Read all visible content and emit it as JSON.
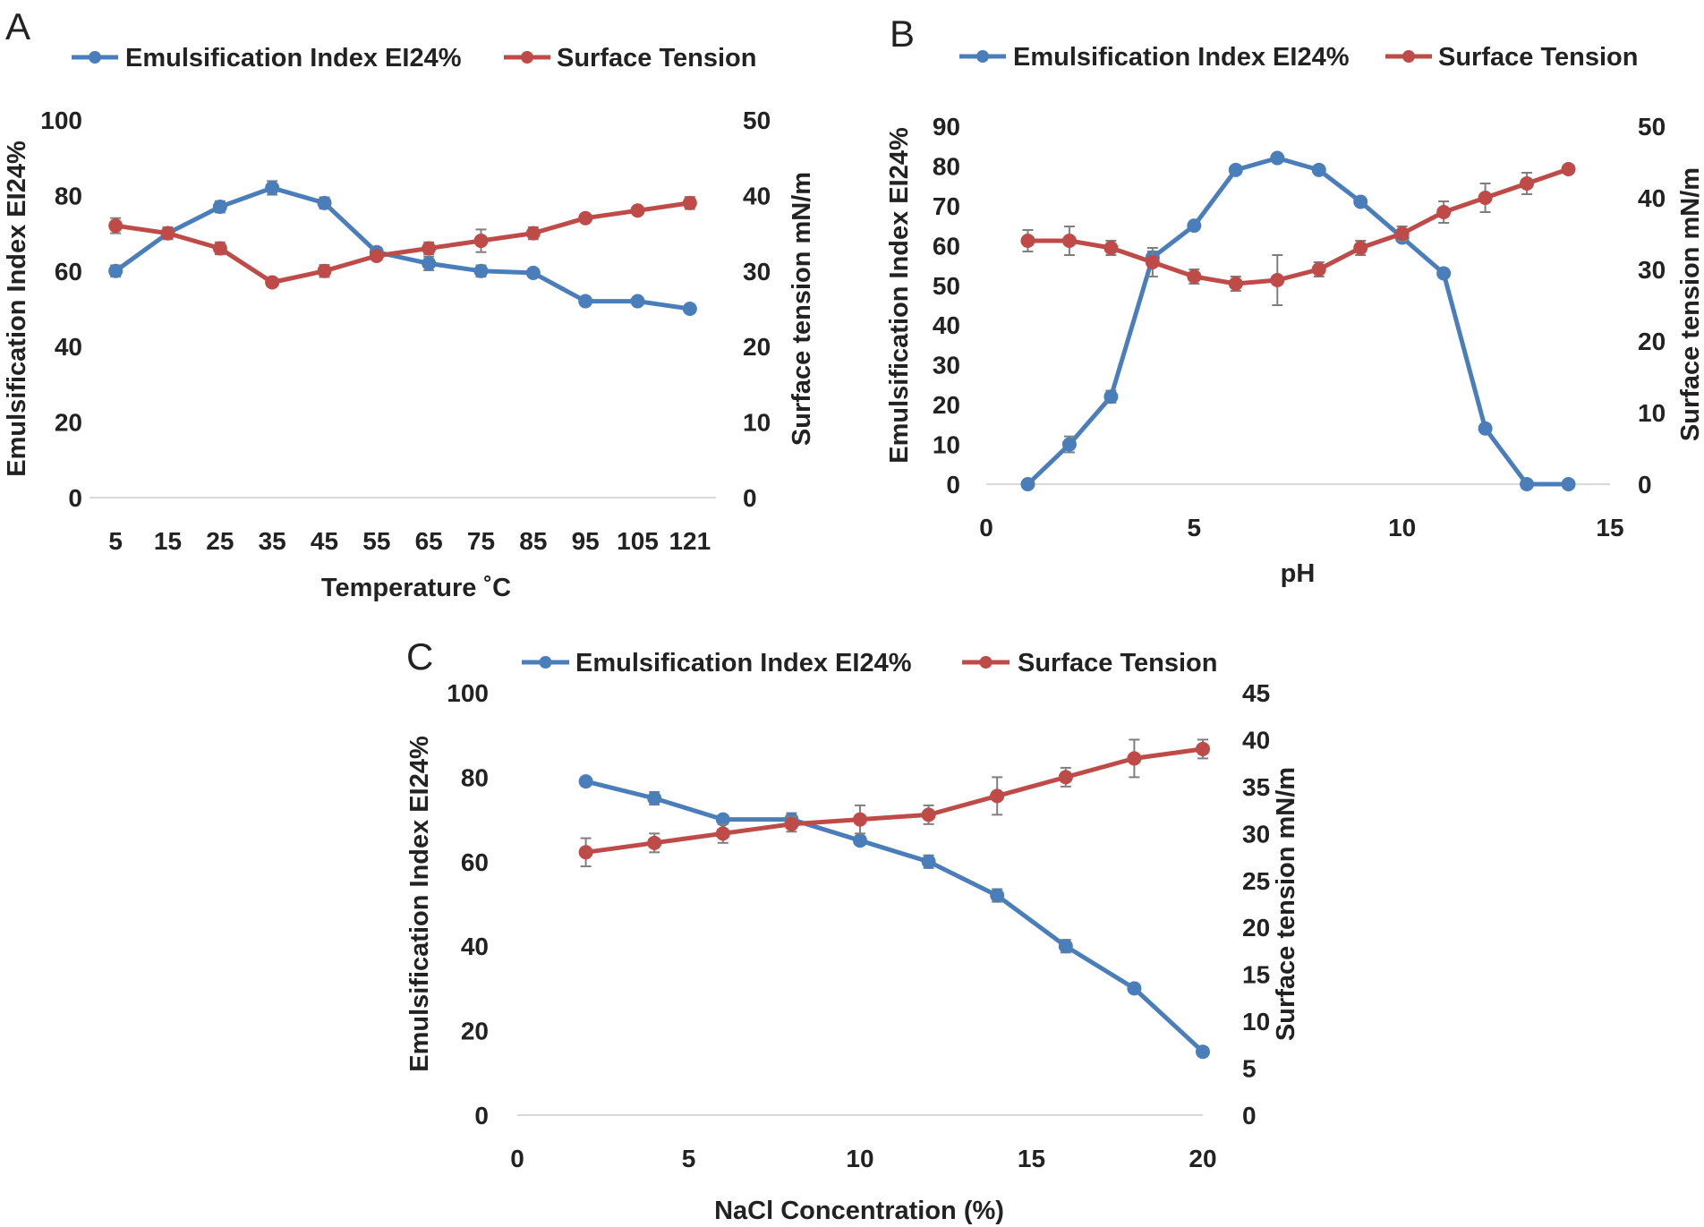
{
  "colors": {
    "ei": "#4a7ebb",
    "st": "#be4b48",
    "axis": "#d9d9d9",
    "err": "#7f7f7f",
    "text": "#222222"
  },
  "chart_data": [
    {
      "panel": "A",
      "type": "line",
      "x_mode": "category",
      "categories": [
        "5",
        "15",
        "25",
        "35",
        "45",
        "55",
        "65",
        "75",
        "85",
        "95",
        "105",
        "121"
      ],
      "xlabel": "Temperature ˚C",
      "ylabel_left": "Emulsification Index EI24%",
      "ylabel_right": "Surface tension mN/m",
      "yleft": {
        "min": 0,
        "max": 100,
        "step": 20
      },
      "yright": {
        "min": 0,
        "max": 50,
        "step": 10
      },
      "series": [
        {
          "name": "Emulsification Index EI24%",
          "axis": "left",
          "color": "#4a7ebb",
          "values": [
            60,
            70,
            77,
            82,
            78,
            65,
            62,
            60,
            59.5,
            52,
            52,
            50
          ],
          "errors": [
            1.5,
            1.5,
            1.5,
            1.8,
            1.5,
            1.2,
            1.8,
            1.5,
            1,
            1,
            1,
            1
          ]
        },
        {
          "name": "Surface Tension",
          "axis": "right",
          "color": "#be4b48",
          "values": [
            36,
            35,
            33,
            28.5,
            30,
            32,
            33,
            34,
            35,
            37,
            38,
            39
          ],
          "errors": [
            1,
            0.8,
            0.8,
            0.5,
            0.8,
            0.5,
            0.8,
            1.5,
            0.8,
            0.5,
            0.5,
            0.8
          ]
        }
      ]
    },
    {
      "panel": "B",
      "type": "line",
      "x_mode": "value",
      "xlabel": "pH",
      "ylabel_left": "Emulsification Index EI24%",
      "ylabel_right": "Surface tension mN/m",
      "xaxis": {
        "min": 0,
        "max": 15,
        "step": 5
      },
      "yleft": {
        "min": 0,
        "max": 90,
        "step": 10
      },
      "yright": {
        "min": 0,
        "max": 50,
        "step": 10
      },
      "series": [
        {
          "name": "Emulsification Index EI24%",
          "axis": "left",
          "color": "#4a7ebb",
          "x": [
            1,
            2,
            3,
            4,
            5,
            6,
            7,
            8,
            9,
            10,
            11,
            12,
            13,
            14
          ],
          "values": [
            0,
            10,
            22,
            57,
            65,
            79,
            82,
            79,
            71,
            62,
            53,
            14,
            0,
            0
          ],
          "errors": [
            0,
            2,
            1.5,
            1.5,
            1,
            1,
            1,
            1,
            1,
            1,
            1,
            1,
            0,
            0
          ]
        },
        {
          "name": "Surface Tension",
          "axis": "right",
          "color": "#be4b48",
          "x": [
            1,
            2,
            3,
            4,
            5,
            6,
            7,
            8,
            9,
            10,
            11,
            12,
            13,
            14
          ],
          "values": [
            34,
            34,
            33,
            31,
            29,
            28,
            28.5,
            30,
            33,
            35,
            38,
            40,
            42,
            44
          ],
          "errors": [
            1.5,
            2,
            1,
            2,
            1,
            1,
            3.5,
            1,
            1,
            1,
            1.5,
            2,
            1.5,
            0.5
          ]
        }
      ]
    },
    {
      "panel": "C",
      "type": "line",
      "x_mode": "value",
      "xlabel": "NaCl Concentration (%)",
      "ylabel_left": "Emulsification Index EI24%",
      "ylabel_right": "Surface tension mN/m",
      "xaxis": {
        "min": 0,
        "max": 20,
        "step": 5
      },
      "yleft": {
        "min": 0,
        "max": 100,
        "step": 20
      },
      "yright": {
        "min": 0,
        "max": 45,
        "step": 5
      },
      "series": [
        {
          "name": "Emulsification Index EI24%",
          "axis": "left",
          "color": "#4a7ebb",
          "x": [
            2,
            4,
            6,
            8,
            10,
            12,
            14,
            16,
            18,
            20
          ],
          "values": [
            79,
            75,
            70,
            70,
            65,
            60,
            52,
            40,
            30,
            15
          ],
          "errors": [
            1,
            1.5,
            1,
            1.5,
            1,
            1.5,
            1.5,
            1.5,
            1,
            1
          ]
        },
        {
          "name": "Surface Tension",
          "axis": "right",
          "color": "#be4b48",
          "x": [
            2,
            4,
            6,
            8,
            10,
            12,
            14,
            16,
            18,
            20
          ],
          "values": [
            28,
            29,
            30,
            31,
            31.5,
            32,
            34,
            36,
            38,
            39
          ],
          "errors": [
            1.5,
            1,
            1,
            0.8,
            1.5,
            1,
            2,
            1,
            2,
            1
          ]
        }
      ]
    }
  ]
}
